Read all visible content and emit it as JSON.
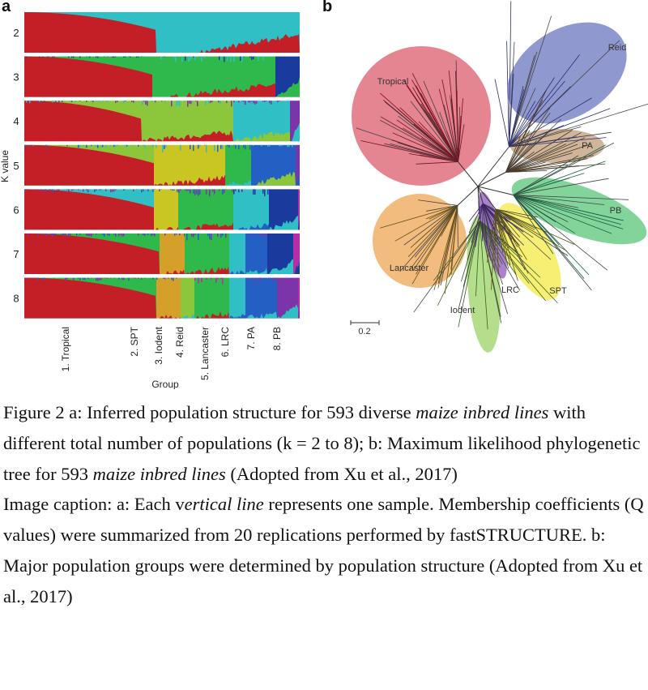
{
  "figure": {
    "panel_a_label": "a",
    "panel_b_label": "b"
  },
  "chart_data": [
    {
      "type": "stacked-bar (population structure)",
      "ylabel": "K value",
      "xlabel": "Group",
      "k_values": [
        "2",
        "3",
        "4",
        "5",
        "6",
        "7",
        "8"
      ],
      "groups": [
        "1. Tropical",
        "2. SPT",
        "3. Iodent",
        "4. Reid",
        "5. Lancaster",
        "6. LRC",
        "7. PA",
        "8. PB"
      ],
      "colors": {
        "red": "#c41e26",
        "cyan": "#2fbfc4",
        "green": "#2fb84c",
        "navy": "#1b3a9e",
        "purple": "#7b35a8",
        "ygreen": "#8cc63a",
        "blue": "#2460c4",
        "magenta": "#b42fa6",
        "orange": "#d4a02a",
        "yellow": "#c9c623"
      }
    },
    {
      "type": "phylogenetic tree",
      "clusters": [
        {
          "name": "Tropical",
          "color": "#e0707e"
        },
        {
          "name": "Reid",
          "color": "#7c86c8"
        },
        {
          "name": "PA",
          "color": "#c8a888"
        },
        {
          "name": "PB",
          "color": "#6ccc8a"
        },
        {
          "name": "Lancaster",
          "color": "#f0b068"
        },
        {
          "name": "Iodent",
          "color": "#a8d878"
        },
        {
          "name": "LRC",
          "color": "#9a6cc0"
        },
        {
          "name": "SPT",
          "color": "#f4ec5a"
        }
      ],
      "scale_bar": "0.2"
    }
  ],
  "caption": {
    "figure_text_1": "Figure 2 a: Inferred population structure for 593 diverse ",
    "figure_italic_1": "maize inbred lines",
    "figure_text_2": " with different total number of populations (k = 2 to 8); b: Maximum likelihood phylogenetic tree for 593 ",
    "figure_italic_2": "maize inbred lines",
    "figure_text_3": " (Adopted from Xu et al., 2017)",
    "image_text_1": "Image caption: a: Each v",
    "image_italic_1": "ertical line",
    "image_text_2": " represents one sample. Membership coefficients (Q values) were summarized from 20 replications performed by fastSTRUCTURE. b: Major population groups were determined by population structure (Adopted from Xu et al., 2017)"
  }
}
